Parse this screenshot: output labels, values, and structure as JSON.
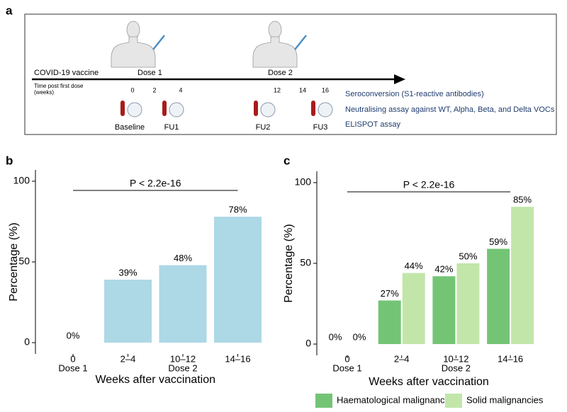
{
  "panel_a": {
    "label": "a",
    "vaccine_label": "COVID-19 vaccine",
    "doses": [
      "Dose 1",
      "Dose 2"
    ],
    "timeline_label": [
      "Time post first dose",
      "(weeks)"
    ],
    "timeline_ticks": [
      "0",
      "2",
      "4",
      "12",
      "14",
      "16"
    ],
    "visits": [
      "Baseline",
      "FU1",
      "FU2",
      "FU3"
    ],
    "assays": [
      "Seroconversion (S1-reactive antibodies)",
      "Neutralising assay against WT, Alpha, Beta, and Delta VOCs",
      "ELISPOT assay"
    ]
  },
  "chart_data": [
    {
      "type": "bar",
      "label": "b",
      "annotation": "P < 2.2e-16",
      "x_label": "Weeks after vaccination",
      "y_label": "Percentage (%)",
      "categories": [
        "0",
        "2–4",
        "10–12",
        "14–16"
      ],
      "category_sublabels": [
        "Dose 1",
        null,
        "Dose 2",
        null
      ],
      "values": [
        0,
        39,
        48,
        78
      ],
      "value_labels": [
        "0%",
        "39%",
        "48%",
        "78%"
      ],
      "color": "#add8e6",
      "ylim": [
        -7,
        107
      ],
      "yticks": [
        0,
        50,
        100
      ]
    },
    {
      "type": "bar",
      "label": "c",
      "annotation": "P < 2.2e-16",
      "x_label": "Weeks after vaccination",
      "y_label": "Percentage (%)",
      "categories": [
        "0",
        "2–4",
        "10–12",
        "14–16"
      ],
      "category_sublabels": [
        "Dose 1",
        null,
        "Dose 2",
        null
      ],
      "series": [
        {
          "name": "Haematological malignancies",
          "color": "#74c476",
          "values": [
            0,
            27,
            42,
            59
          ],
          "value_labels": [
            "0%",
            "27%",
            "42%",
            "59%"
          ]
        },
        {
          "name": "Solid malignancies",
          "color": "#c2e6aa",
          "values": [
            0,
            44,
            50,
            85
          ],
          "value_labels": [
            "0%",
            "44%",
            "50%",
            "85%"
          ]
        }
      ],
      "legend": "bottom",
      "ylim": [
        -7,
        107
      ],
      "yticks": [
        0,
        50,
        100
      ]
    }
  ]
}
